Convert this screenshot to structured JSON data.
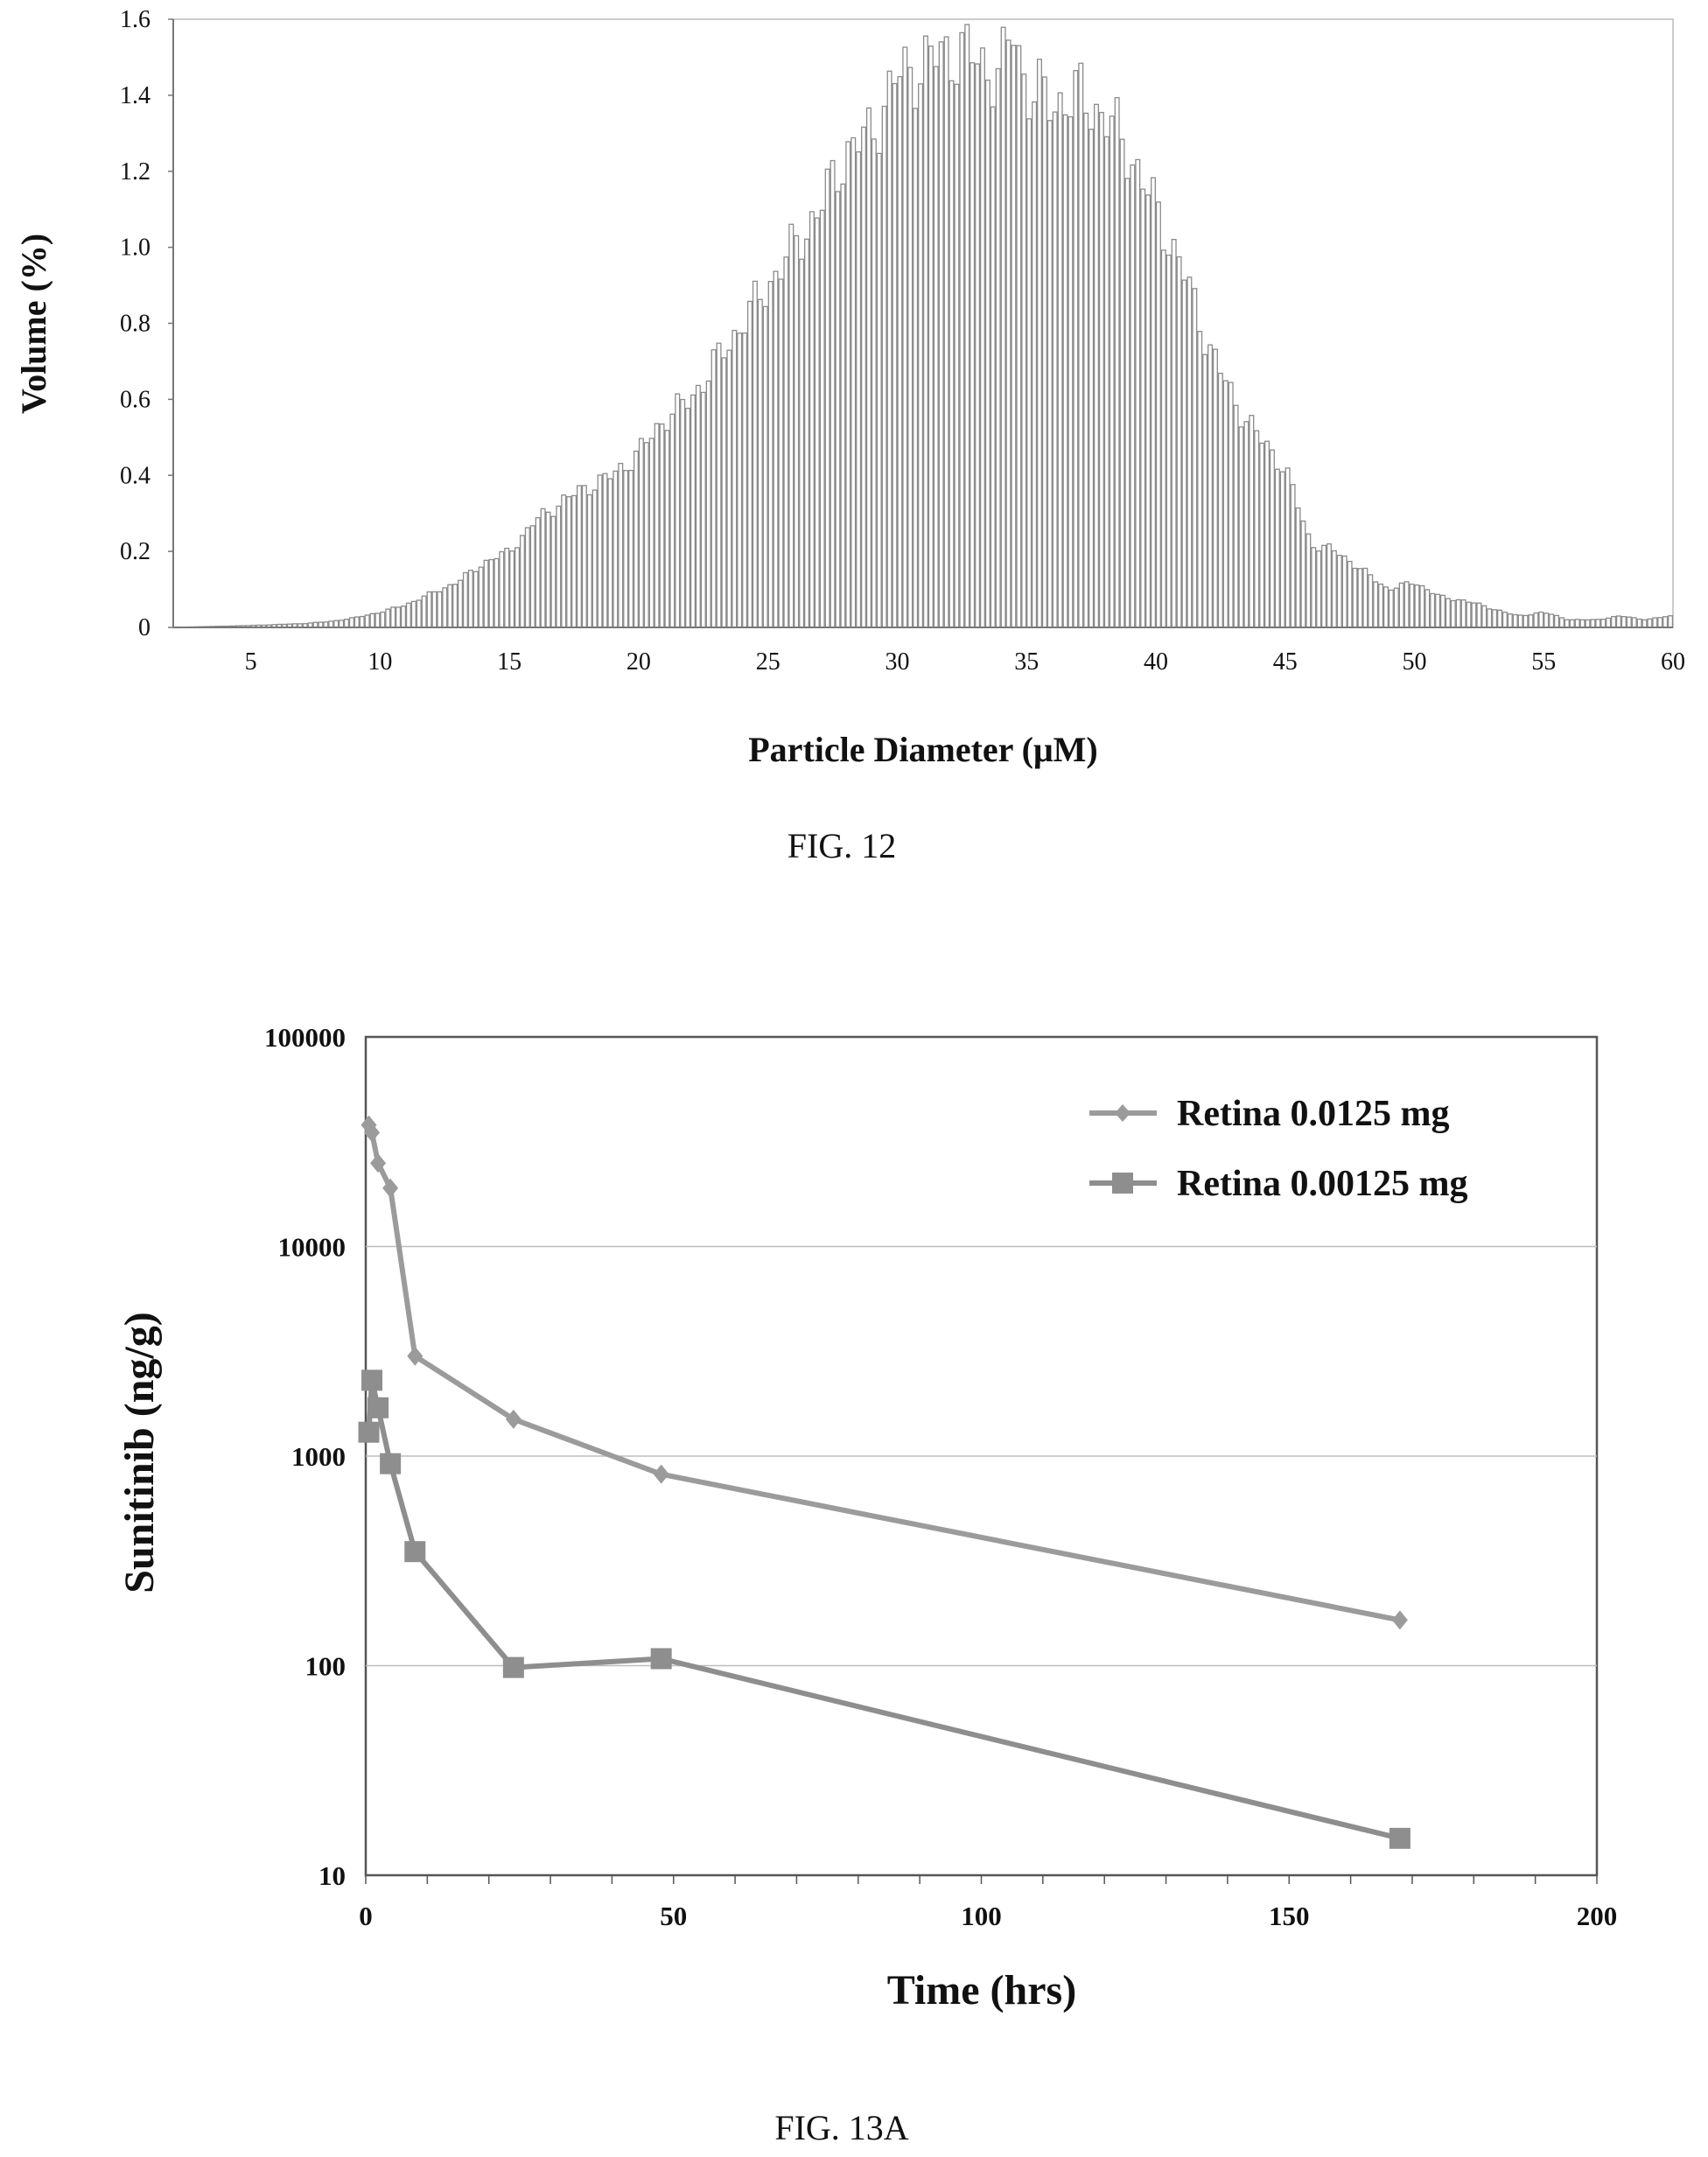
{
  "chart_data": [
    {
      "type": "bar",
      "title": "",
      "xlabel": "Particle Diameter (μM)",
      "ylabel": "Volume (%)",
      "caption": "FIG. 12",
      "xlim": [
        2,
        60
      ],
      "ylim": [
        0,
        1.6
      ],
      "xticks": [
        5,
        10,
        15,
        20,
        25,
        30,
        35,
        40,
        45,
        50,
        55,
        60
      ],
      "yticks": [
        0,
        0.2,
        0.4,
        0.6,
        0.8,
        1.0,
        1.2,
        1.4,
        1.6
      ],
      "ytick_labels": [
        "0",
        "0.2",
        "0.4",
        "0.6",
        "0.8",
        "1.0",
        "1.2",
        "1.4",
        "1.6"
      ],
      "peaks": [
        {
          "x": 2.0,
          "y": 0.0
        },
        {
          "x": 5.0,
          "y": 0.005
        },
        {
          "x": 7.0,
          "y": 0.01
        },
        {
          "x": 8.0,
          "y": 0.015
        },
        {
          "x": 9.0,
          "y": 0.025
        },
        {
          "x": 10.0,
          "y": 0.04
        },
        {
          "x": 11.0,
          "y": 0.06
        },
        {
          "x": 12.0,
          "y": 0.09
        },
        {
          "x": 13.0,
          "y": 0.12
        },
        {
          "x": 14.0,
          "y": 0.17
        },
        {
          "x": 15.0,
          "y": 0.2
        },
        {
          "x": 16.0,
          "y": 0.28
        },
        {
          "x": 17.0,
          "y": 0.33
        },
        {
          "x": 18.0,
          "y": 0.37
        },
        {
          "x": 19.0,
          "y": 0.4
        },
        {
          "x": 20.0,
          "y": 0.46
        },
        {
          "x": 21.0,
          "y": 0.55
        },
        {
          "x": 22.0,
          "y": 0.6
        },
        {
          "x": 23.0,
          "y": 0.7
        },
        {
          "x": 24.0,
          "y": 0.8
        },
        {
          "x": 25.0,
          "y": 0.9
        },
        {
          "x": 26.0,
          "y": 1.0
        },
        {
          "x": 27.0,
          "y": 1.1
        },
        {
          "x": 28.0,
          "y": 1.25
        },
        {
          "x": 29.0,
          "y": 1.3
        },
        {
          "x": 30.0,
          "y": 1.45
        },
        {
          "x": 31.0,
          "y": 1.48
        },
        {
          "x": 32.0,
          "y": 1.52
        },
        {
          "x": 33.0,
          "y": 1.5
        },
        {
          "x": 34.0,
          "y": 1.45
        },
        {
          "x": 34.5,
          "y": 1.58
        },
        {
          "x": 35.0,
          "y": 1.42
        },
        {
          "x": 36.0,
          "y": 1.38
        },
        {
          "x": 37.0,
          "y": 1.4
        },
        {
          "x": 38.0,
          "y": 1.35
        },
        {
          "x": 39.0,
          "y": 1.25
        },
        {
          "x": 40.0,
          "y": 1.1
        },
        {
          "x": 41.0,
          "y": 0.95
        },
        {
          "x": 42.0,
          "y": 0.75
        },
        {
          "x": 43.0,
          "y": 0.6
        },
        {
          "x": 44.0,
          "y": 0.5
        },
        {
          "x": 45.0,
          "y": 0.42
        },
        {
          "x": 46.0,
          "y": 0.22
        },
        {
          "x": 47.0,
          "y": 0.2
        },
        {
          "x": 48.0,
          "y": 0.15
        },
        {
          "x": 49.0,
          "y": 0.1
        },
        {
          "x": 50.0,
          "y": 0.12
        },
        {
          "x": 51.0,
          "y": 0.08
        },
        {
          "x": 52.0,
          "y": 0.07
        },
        {
          "x": 53.0,
          "y": 0.05
        },
        {
          "x": 54.0,
          "y": 0.03
        },
        {
          "x": 55.0,
          "y": 0.04
        },
        {
          "x": 56.0,
          "y": 0.02
        },
        {
          "x": 57.0,
          "y": 0.02
        },
        {
          "x": 58.0,
          "y": 0.03
        },
        {
          "x": 59.0,
          "y": 0.02
        },
        {
          "x": 59.8,
          "y": 0.03
        }
      ],
      "bin_width": 0.2
    },
    {
      "type": "line",
      "title": "",
      "xlabel": "Time (hrs)",
      "ylabel": "Sunitinib (ng/g)",
      "caption": "FIG. 13A",
      "yscale": "log",
      "xlim": [
        0,
        200
      ],
      "ylim": [
        10,
        100000
      ],
      "xticks": [
        0,
        50,
        100,
        150,
        200
      ],
      "yticks": [
        10,
        100,
        1000,
        10000,
        100000
      ],
      "grid": true,
      "legend_position": "top-right",
      "series": [
        {
          "name": "Retina 0.0125 mg",
          "marker": "diamond",
          "x": [
            0.5,
            1,
            2,
            4,
            8,
            24,
            48,
            168
          ],
          "y": [
            38000,
            35000,
            25000,
            19000,
            3000,
            1500,
            820,
            165
          ]
        },
        {
          "name": "Retina 0.00125 mg",
          "marker": "square",
          "x": [
            0.5,
            1,
            2,
            4,
            8,
            24,
            48,
            168
          ],
          "y": [
            1300,
            2300,
            1700,
            920,
            350,
            98,
            108,
            15
          ]
        }
      ]
    }
  ],
  "colors": {
    "bar_stroke": "#8a8a8a",
    "series_1": "#9b9b9b",
    "series_2": "#8e8e8e",
    "grid": "#bdbdbd",
    "frame": "#555555"
  }
}
